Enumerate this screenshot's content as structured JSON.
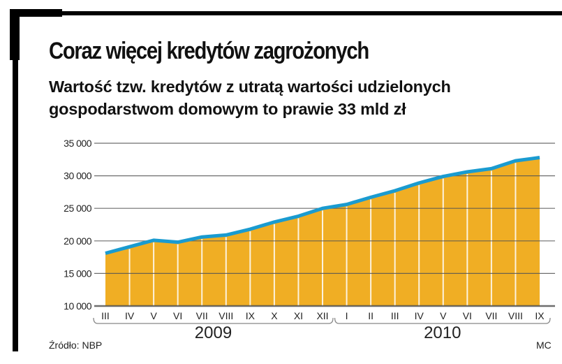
{
  "title": "Coraz więcej kredytów zagrożonych",
  "subtitle_line1": "Wartość tzw. kredytów z utratą wartości udzielonych",
  "subtitle_line2": "gospodarstwom domowym to prawie 33 mld zł",
  "source": "Źródło: NBP",
  "author": "MC",
  "chart_data": {
    "type": "area",
    "title": "Coraz więcej kredytów zagrożonych",
    "subtitle": "Wartość tzw. kredytów z utratą wartości udzielonych gospodarstwom domowym to prawie 33 mld zł",
    "categories": [
      "III",
      "IV",
      "V",
      "VI",
      "VII",
      "VIII",
      "IX",
      "X",
      "XI",
      "XII",
      "I",
      "II",
      "III",
      "IV",
      "V",
      "VI",
      "VII",
      "VIII",
      "IX"
    ],
    "year_groups": [
      {
        "label": "2009",
        "from": 0,
        "to": 9
      },
      {
        "label": "2010",
        "from": 10,
        "to": 18
      }
    ],
    "values": [
      18100,
      19100,
      20100,
      19800,
      20600,
      20900,
      21800,
      22900,
      23800,
      25000,
      25600,
      26700,
      27700,
      28900,
      29900,
      30600,
      31100,
      32300,
      32800
    ],
    "ylim": [
      10000,
      35000
    ],
    "yticks": [
      10000,
      15000,
      20000,
      25000,
      30000,
      35000
    ],
    "ytick_labels": [
      "10 000",
      "15 000",
      "20 000",
      "25 000",
      "30 000",
      "35 000"
    ],
    "grid": true,
    "colors": {
      "fill": "#f0ae24",
      "line": "#1a9bd0",
      "grid": "#555555"
    }
  }
}
